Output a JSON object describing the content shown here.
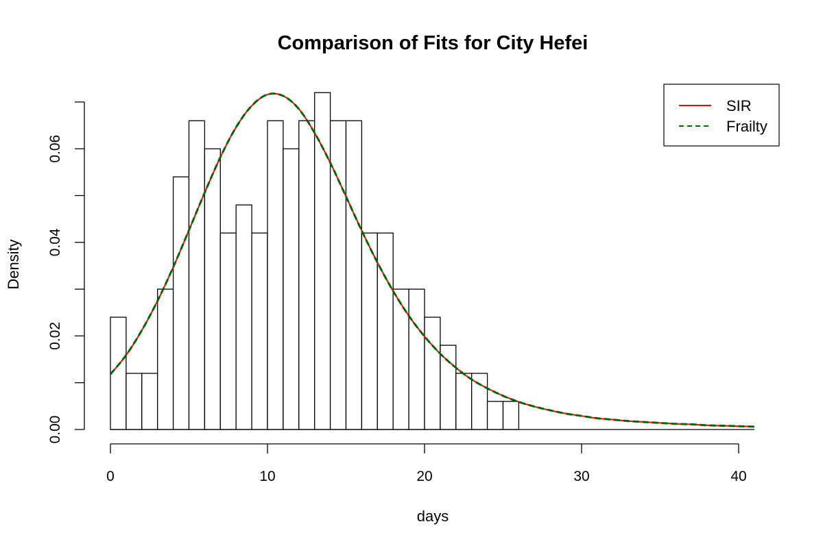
{
  "chart_data": {
    "type": "bar",
    "title": "Comparison of Fits for City Hefei",
    "xlabel": "days",
    "ylabel": "Density",
    "xlim": [
      0,
      41
    ],
    "ylim": [
      0,
      0.07
    ],
    "x_ticks": [
      "0",
      "10",
      "20",
      "30",
      "40"
    ],
    "y_ticks": [
      "0.00",
      "0.02",
      "0.04",
      "0.06"
    ],
    "bin_width": 1,
    "bins": [
      {
        "x0": 0,
        "value": 0.024
      },
      {
        "x0": 1,
        "value": 0.012
      },
      {
        "x0": 2,
        "value": 0.012
      },
      {
        "x0": 3,
        "value": 0.03
      },
      {
        "x0": 4,
        "value": 0.054
      },
      {
        "x0": 5,
        "value": 0.066
      },
      {
        "x0": 6,
        "value": 0.06
      },
      {
        "x0": 7,
        "value": 0.042
      },
      {
        "x0": 8,
        "value": 0.048
      },
      {
        "x0": 9,
        "value": 0.042
      },
      {
        "x0": 10,
        "value": 0.066
      },
      {
        "x0": 11,
        "value": 0.06
      },
      {
        "x0": 12,
        "value": 0.066
      },
      {
        "x0": 13,
        "value": 0.072
      },
      {
        "x0": 14,
        "value": 0.066
      },
      {
        "x0": 15,
        "value": 0.066
      },
      {
        "x0": 16,
        "value": 0.042
      },
      {
        "x0": 17,
        "value": 0.042
      },
      {
        "x0": 18,
        "value": 0.03
      },
      {
        "x0": 19,
        "value": 0.03
      },
      {
        "x0": 20,
        "value": 0.024
      },
      {
        "x0": 21,
        "value": 0.018
      },
      {
        "x0": 22,
        "value": 0.012
      },
      {
        "x0": 23,
        "value": 0.012
      },
      {
        "x0": 24,
        "value": 0.006
      },
      {
        "x0": 25,
        "value": 0.006
      }
    ],
    "series": [
      {
        "name": "SIR",
        "color": "#ff0000",
        "style": "solid",
        "x": [
          0,
          1,
          2,
          3,
          4,
          5,
          6,
          7,
          8,
          9,
          10,
          11,
          12,
          13,
          14,
          15,
          16,
          17,
          18,
          19,
          20,
          21,
          22,
          23,
          24,
          25,
          26,
          27,
          28,
          29,
          30,
          31,
          32,
          33,
          34,
          35,
          36,
          37,
          38,
          39,
          40,
          41
        ],
        "y": [
          0.0118,
          0.0159,
          0.0212,
          0.0275,
          0.0347,
          0.0426,
          0.0506,
          0.0582,
          0.0646,
          0.0692,
          0.0716,
          0.0713,
          0.0685,
          0.0634,
          0.057,
          0.0498,
          0.0425,
          0.0357,
          0.0296,
          0.0243,
          0.0199,
          0.0162,
          0.0132,
          0.0107,
          0.0088,
          0.0072,
          0.0059,
          0.0049,
          0.0041,
          0.0034,
          0.0029,
          0.0024,
          0.0021,
          0.0018,
          0.0016,
          0.0014,
          0.0012,
          0.0011,
          0.0009,
          0.0008,
          0.0007,
          0.0006
        ]
      },
      {
        "name": "Frailty",
        "color": "#006400",
        "style": "dashed",
        "x": [
          0,
          1,
          2,
          3,
          4,
          5,
          6,
          7,
          8,
          9,
          10,
          11,
          12,
          13,
          14,
          15,
          16,
          17,
          18,
          19,
          20,
          21,
          22,
          23,
          24,
          25,
          26,
          27,
          28,
          29,
          30,
          31,
          32,
          33,
          34,
          35,
          36,
          37,
          38,
          39,
          40,
          41
        ],
        "y": [
          0.0118,
          0.0159,
          0.0212,
          0.0275,
          0.0347,
          0.0426,
          0.0506,
          0.0582,
          0.0646,
          0.0692,
          0.0716,
          0.0713,
          0.0685,
          0.0634,
          0.057,
          0.0498,
          0.0425,
          0.0357,
          0.0296,
          0.0243,
          0.0199,
          0.0162,
          0.0132,
          0.0107,
          0.0088,
          0.0072,
          0.0059,
          0.0049,
          0.0041,
          0.0034,
          0.0029,
          0.0024,
          0.0021,
          0.0018,
          0.0016,
          0.0014,
          0.0012,
          0.0011,
          0.0009,
          0.0008,
          0.0007,
          0.0006
        ]
      }
    ],
    "legend": {
      "placement": "top-right",
      "entries": [
        "SIR",
        "Frailty"
      ]
    },
    "grid": false
  }
}
